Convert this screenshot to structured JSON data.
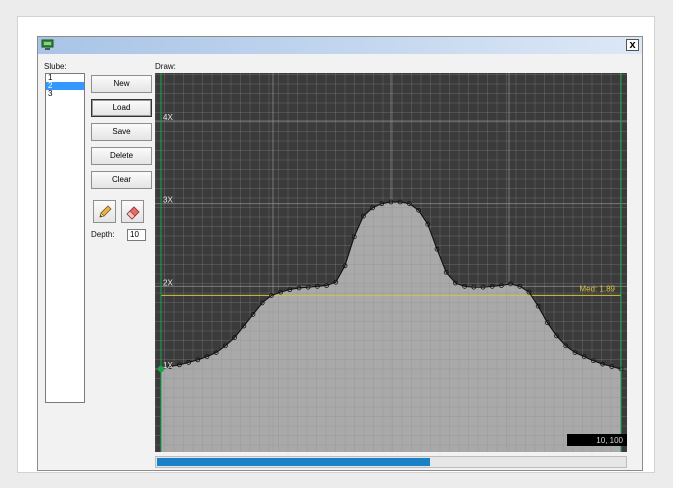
{
  "window": {
    "title": "",
    "close_glyph": "x"
  },
  "slices": {
    "label": "Slube:",
    "items": [
      "1",
      "2",
      "3"
    ],
    "selected_index": 1
  },
  "buttons": {
    "new": "New",
    "load": "Load",
    "save": "Save",
    "delete": "Delete",
    "clear": "Clear"
  },
  "tools": {
    "pencil_icon": "pencil-icon",
    "eraser_icon": "eraser-icon"
  },
  "depth": {
    "label": "Depth:",
    "value": "10"
  },
  "draw": {
    "label": "Draw:",
    "levels": [
      "4X",
      "3X",
      "2X",
      "1X"
    ],
    "median_label": "Med: 1.89",
    "coord_readout": "10, 100",
    "colors": {
      "background": "#3b3b3b",
      "fill": "#a9a9a9",
      "grid": "#7f7f7f",
      "median": "#d8c23a",
      "marker": "#19a64a",
      "curve": "#111111"
    }
  },
  "progress": {
    "fraction": 0.58,
    "color": "#1a80c8"
  },
  "chart_data": {
    "type": "area",
    "level_labels": [
      "1X",
      "2X",
      "3X",
      "4X"
    ],
    "ylim": [
      1,
      4
    ],
    "xlim": [
      0,
      100
    ],
    "median": 1.89,
    "points": [
      [
        0,
        1.0
      ],
      [
        2,
        1.03
      ],
      [
        4,
        1.05
      ],
      [
        6,
        1.08
      ],
      [
        8,
        1.11
      ],
      [
        10,
        1.15
      ],
      [
        12,
        1.2
      ],
      [
        14,
        1.28
      ],
      [
        16,
        1.38
      ],
      [
        18,
        1.52
      ],
      [
        20,
        1.66
      ],
      [
        22,
        1.8
      ],
      [
        24,
        1.89
      ],
      [
        26,
        1.93
      ],
      [
        28,
        1.96
      ],
      [
        30,
        1.98
      ],
      [
        32,
        1.99
      ],
      [
        34,
        2.0
      ],
      [
        36,
        2.01
      ],
      [
        38,
        2.05
      ],
      [
        40,
        2.25
      ],
      [
        42,
        2.6
      ],
      [
        44,
        2.85
      ],
      [
        46,
        2.95
      ],
      [
        48,
        3.0
      ],
      [
        50,
        3.02
      ],
      [
        52,
        3.02
      ],
      [
        54,
        3.0
      ],
      [
        56,
        2.92
      ],
      [
        58,
        2.75
      ],
      [
        60,
        2.45
      ],
      [
        62,
        2.17
      ],
      [
        64,
        2.04
      ],
      [
        66,
        2.0
      ],
      [
        68,
        1.99
      ],
      [
        70,
        1.99
      ],
      [
        72,
        2.0
      ],
      [
        74,
        2.01
      ],
      [
        76,
        2.03
      ],
      [
        78,
        2.0
      ],
      [
        80,
        1.93
      ],
      [
        82,
        1.76
      ],
      [
        84,
        1.56
      ],
      [
        86,
        1.4
      ],
      [
        88,
        1.28
      ],
      [
        90,
        1.2
      ],
      [
        92,
        1.15
      ],
      [
        94,
        1.1
      ],
      [
        96,
        1.06
      ],
      [
        98,
        1.03
      ],
      [
        100,
        1.0
      ]
    ]
  }
}
